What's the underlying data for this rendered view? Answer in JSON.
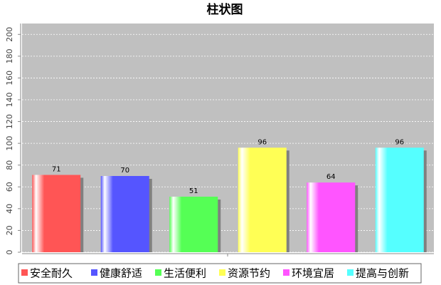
{
  "chart_data": {
    "type": "bar",
    "title": "柱状图",
    "series": [
      {
        "name": "安全耐久",
        "color": "#ff5555",
        "values": [
          71
        ]
      },
      {
        "name": "健康舒适",
        "color": "#5555ff",
        "values": [
          70
        ]
      },
      {
        "name": "生活便利",
        "color": "#55ff55",
        "values": [
          51
        ]
      },
      {
        "name": "资源节约",
        "color": "#ffff55",
        "values": [
          96
        ]
      },
      {
        "name": "环境宜居",
        "color": "#ff55ff",
        "values": [
          64
        ]
      },
      {
        "name": "提高与创新",
        "color": "#55ffff",
        "values": [
          96
        ]
      }
    ],
    "ylim": [
      0,
      210
    ],
    "yticks": [
      0,
      20,
      40,
      60,
      80,
      100,
      120,
      140,
      160,
      180,
      200
    ],
    "grid": true,
    "legend": "bottom"
  }
}
